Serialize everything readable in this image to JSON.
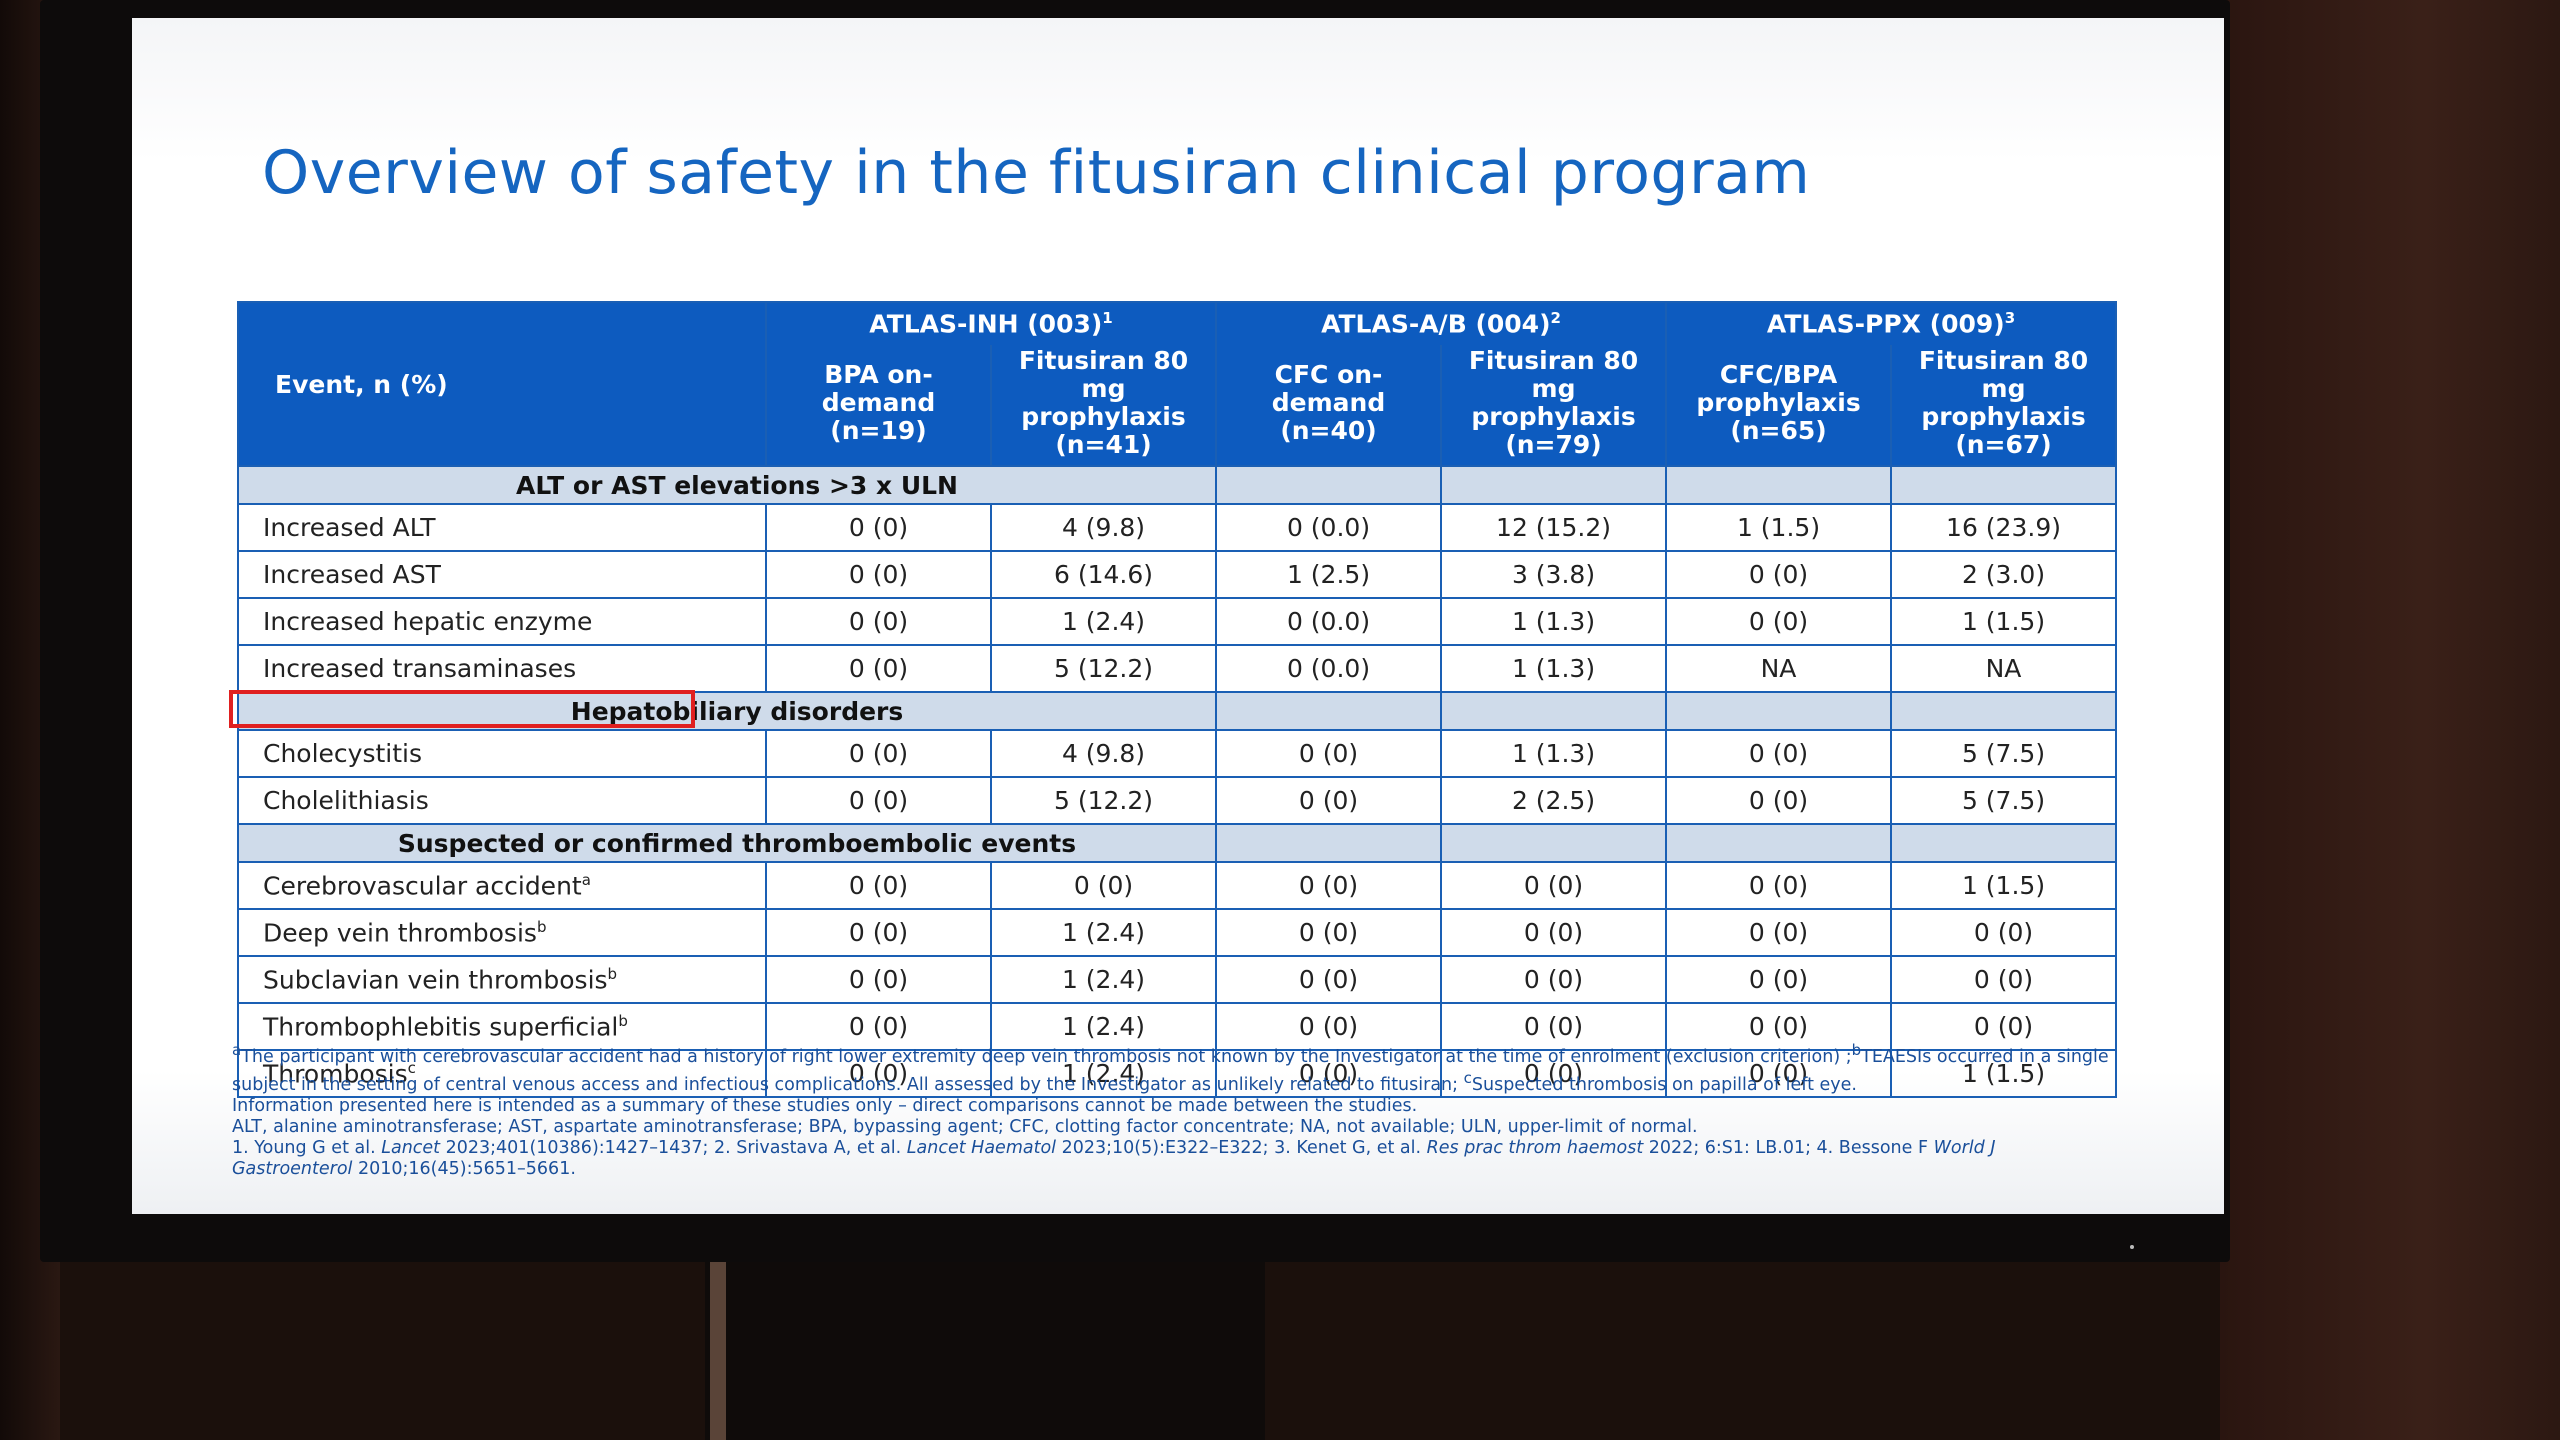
{
  "title": "Overview of safety in the fitusiran clinical program",
  "table": {
    "event_header": "Event, n (%)",
    "studies": [
      {
        "name": "ATLAS-INH (003)",
        "ref": "1"
      },
      {
        "name": "ATLAS-A/B (004)",
        "ref": "2"
      },
      {
        "name": "ATLAS-PPX (009)",
        "ref": "3"
      }
    ],
    "columns": [
      {
        "l1": "BPA on-",
        "l2": "demand",
        "l3": "(n=19)"
      },
      {
        "l1": "Fitusiran 80 mg",
        "l2": "prophylaxis",
        "l3": "(n=41)"
      },
      {
        "l1": "CFC on-demand",
        "l2": "(n=40)",
        "l3": ""
      },
      {
        "l1": "Fitusiran 80 mg",
        "l2": "prophylaxis",
        "l3": "(n=79)"
      },
      {
        "l1": "CFC/BPA",
        "l2": "prophylaxis",
        "l3": "(n=65)"
      },
      {
        "l1": "Fitusiran 80 mg",
        "l2": "prophylaxis",
        "l3": "(n=67)"
      }
    ],
    "sections": [
      {
        "label": "ALT or AST elevations >3 x ULN",
        "rows": [
          {
            "event": "Increased ALT",
            "sup": "",
            "values": [
              "0 (0)",
              "4 (9.8)",
              "0 (0.0)",
              "12 (15.2)",
              "1 (1.5)",
              "16 (23.9)"
            ]
          },
          {
            "event": "Increased AST",
            "sup": "",
            "values": [
              "0 (0)",
              "6 (14.6)",
              "1 (2.5)",
              "3 (3.8)",
              "0 (0)",
              "2 (3.0)"
            ]
          },
          {
            "event": "Increased hepatic enzyme",
            "sup": "",
            "values": [
              "0 (0)",
              "1 (2.4)",
              "0 (0.0)",
              "1 (1.3)",
              "0 (0)",
              "1 (1.5)"
            ]
          },
          {
            "event": "Increased transaminases",
            "sup": "",
            "values": [
              "0 (0)",
              "5 (12.2)",
              "0 (0.0)",
              "1 (1.3)",
              "NA",
              "NA"
            ]
          }
        ]
      },
      {
        "label": "Hepatobiliary disorders",
        "rows": [
          {
            "event": "Cholecystitis",
            "sup": "",
            "values": [
              "0 (0)",
              "4 (9.8)",
              "0 (0)",
              "1 (1.3)",
              "0 (0)",
              "5 (7.5)"
            ]
          },
          {
            "event": "Cholelithiasis",
            "sup": "",
            "values": [
              "0 (0)",
              "5 (12.2)",
              "0 (0)",
              "2 (2.5)",
              "0 (0)",
              "5 (7.5)"
            ]
          }
        ]
      },
      {
        "label": "Suspected or confirmed thromboembolic events",
        "rows": [
          {
            "event": "Cerebrovascular accident",
            "sup": "a",
            "values": [
              "0 (0)",
              "0 (0)",
              "0 (0)",
              "0 (0)",
              "0 (0)",
              "1 (1.5)"
            ]
          },
          {
            "event": "Deep vein thrombosis",
            "sup": "b",
            "values": [
              "0 (0)",
              "1 (2.4)",
              "0 (0)",
              "0 (0)",
              "0 (0)",
              "0 (0)"
            ]
          },
          {
            "event": "Subclavian vein thrombosis",
            "sup": "b",
            "values": [
              "0 (0)",
              "1 (2.4)",
              "0 (0)",
              "0 (0)",
              "0 (0)",
              "0 (0)"
            ]
          },
          {
            "event": "Thrombophlebitis superficial",
            "sup": "b",
            "values": [
              "0 (0)",
              "1 (2.4)",
              "0 (0)",
              "0 (0)",
              "0 (0)",
              "0 (0)"
            ]
          },
          {
            "event": "Thrombosis",
            "sup": "c",
            "values": [
              "0 (0)",
              "1 (2.4)",
              "0 (0)",
              "0 (0)",
              "0 (0)",
              "1 (1.5)"
            ]
          }
        ]
      }
    ]
  },
  "footnotes": {
    "note_a_sup": "a",
    "note_a": "The participant with cerebrovascular accident had a history of right lower extremity deep vein thrombosis not known by the Investigator at the time of enrolment (exclusion criterion) ;",
    "note_b_sup": "b",
    "note_b": "TEAESIs occurred in a single subject in the setting of central venous access and infectious complications. All assessed by the Investigator as unlikely related to fitusiran;",
    "note_c_sup": "c",
    "note_c": "Suspected thrombosis on papilla of left eye.",
    "info": "Information presented here is intended as a summary of these studies only – direct comparisons cannot be made between the studies.",
    "abbrev": "ALT, alanine aminotransferase; AST, aspartate aminotransferase; BPA, bypassing agent; CFC, clotting factor concentrate; NA, not available; ULN, upper-limit of normal.",
    "ref1_a": "1. Young G et al. ",
    "ref1_j": "Lancet",
    "ref1_b": " 2023;401(10386):1427–1437; 2. Srivastava A, et al. ",
    "ref2_j": "Lancet Haematol",
    "ref2_b": " 2023;10(5):E322–E322; 3. Kenet G, et al. ",
    "ref3_j": "Res prac throm haemost",
    "ref3_b": " 2022; 6:S1: LB.01; 4. Bessone F ",
    "ref4_j": "World J Gastroenterol",
    "ref4_b": " 2010;16(45):5651–5661."
  }
}
